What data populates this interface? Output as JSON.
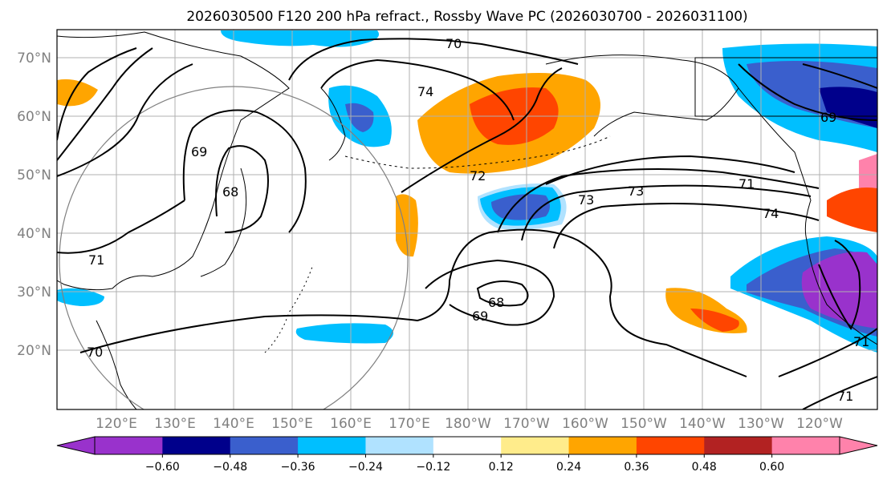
{
  "title": "2026030500 F120 200 hPa refract., Rossby Wave PC (2026030700 - 2026031100)",
  "lat_labels": [
    "70°N",
    "60°N",
    "50°N",
    "40°N",
    "30°N",
    "20°N"
  ],
  "lon_labels": [
    "120°E",
    "130°E",
    "140°E",
    "150°E",
    "160°E",
    "170°E",
    "180°W",
    "170°W",
    "160°W",
    "150°W",
    "140°W",
    "130°W",
    "120°W"
  ],
  "contour_labels": [
    "70",
    "74",
    "69",
    "68",
    "71",
    "72",
    "73",
    "74",
    "68",
    "69",
    "70",
    "71",
    "69",
    "71",
    "71",
    "73"
  ],
  "colorbar": {
    "colors": [
      "#9932cc",
      "#00008b",
      "#3a5fcd",
      "#00bfff",
      "#b0e2ff",
      "#ffffff",
      "#ffec8b",
      "#ffa500",
      "#ff4500",
      "#b22222",
      "#ff82ab"
    ],
    "tick_labels": [
      "−0.60",
      "−0.48",
      "−0.36",
      "−0.24",
      "−0.12",
      "0.12",
      "0.24",
      "0.36",
      "0.48",
      "0.60"
    ]
  }
}
